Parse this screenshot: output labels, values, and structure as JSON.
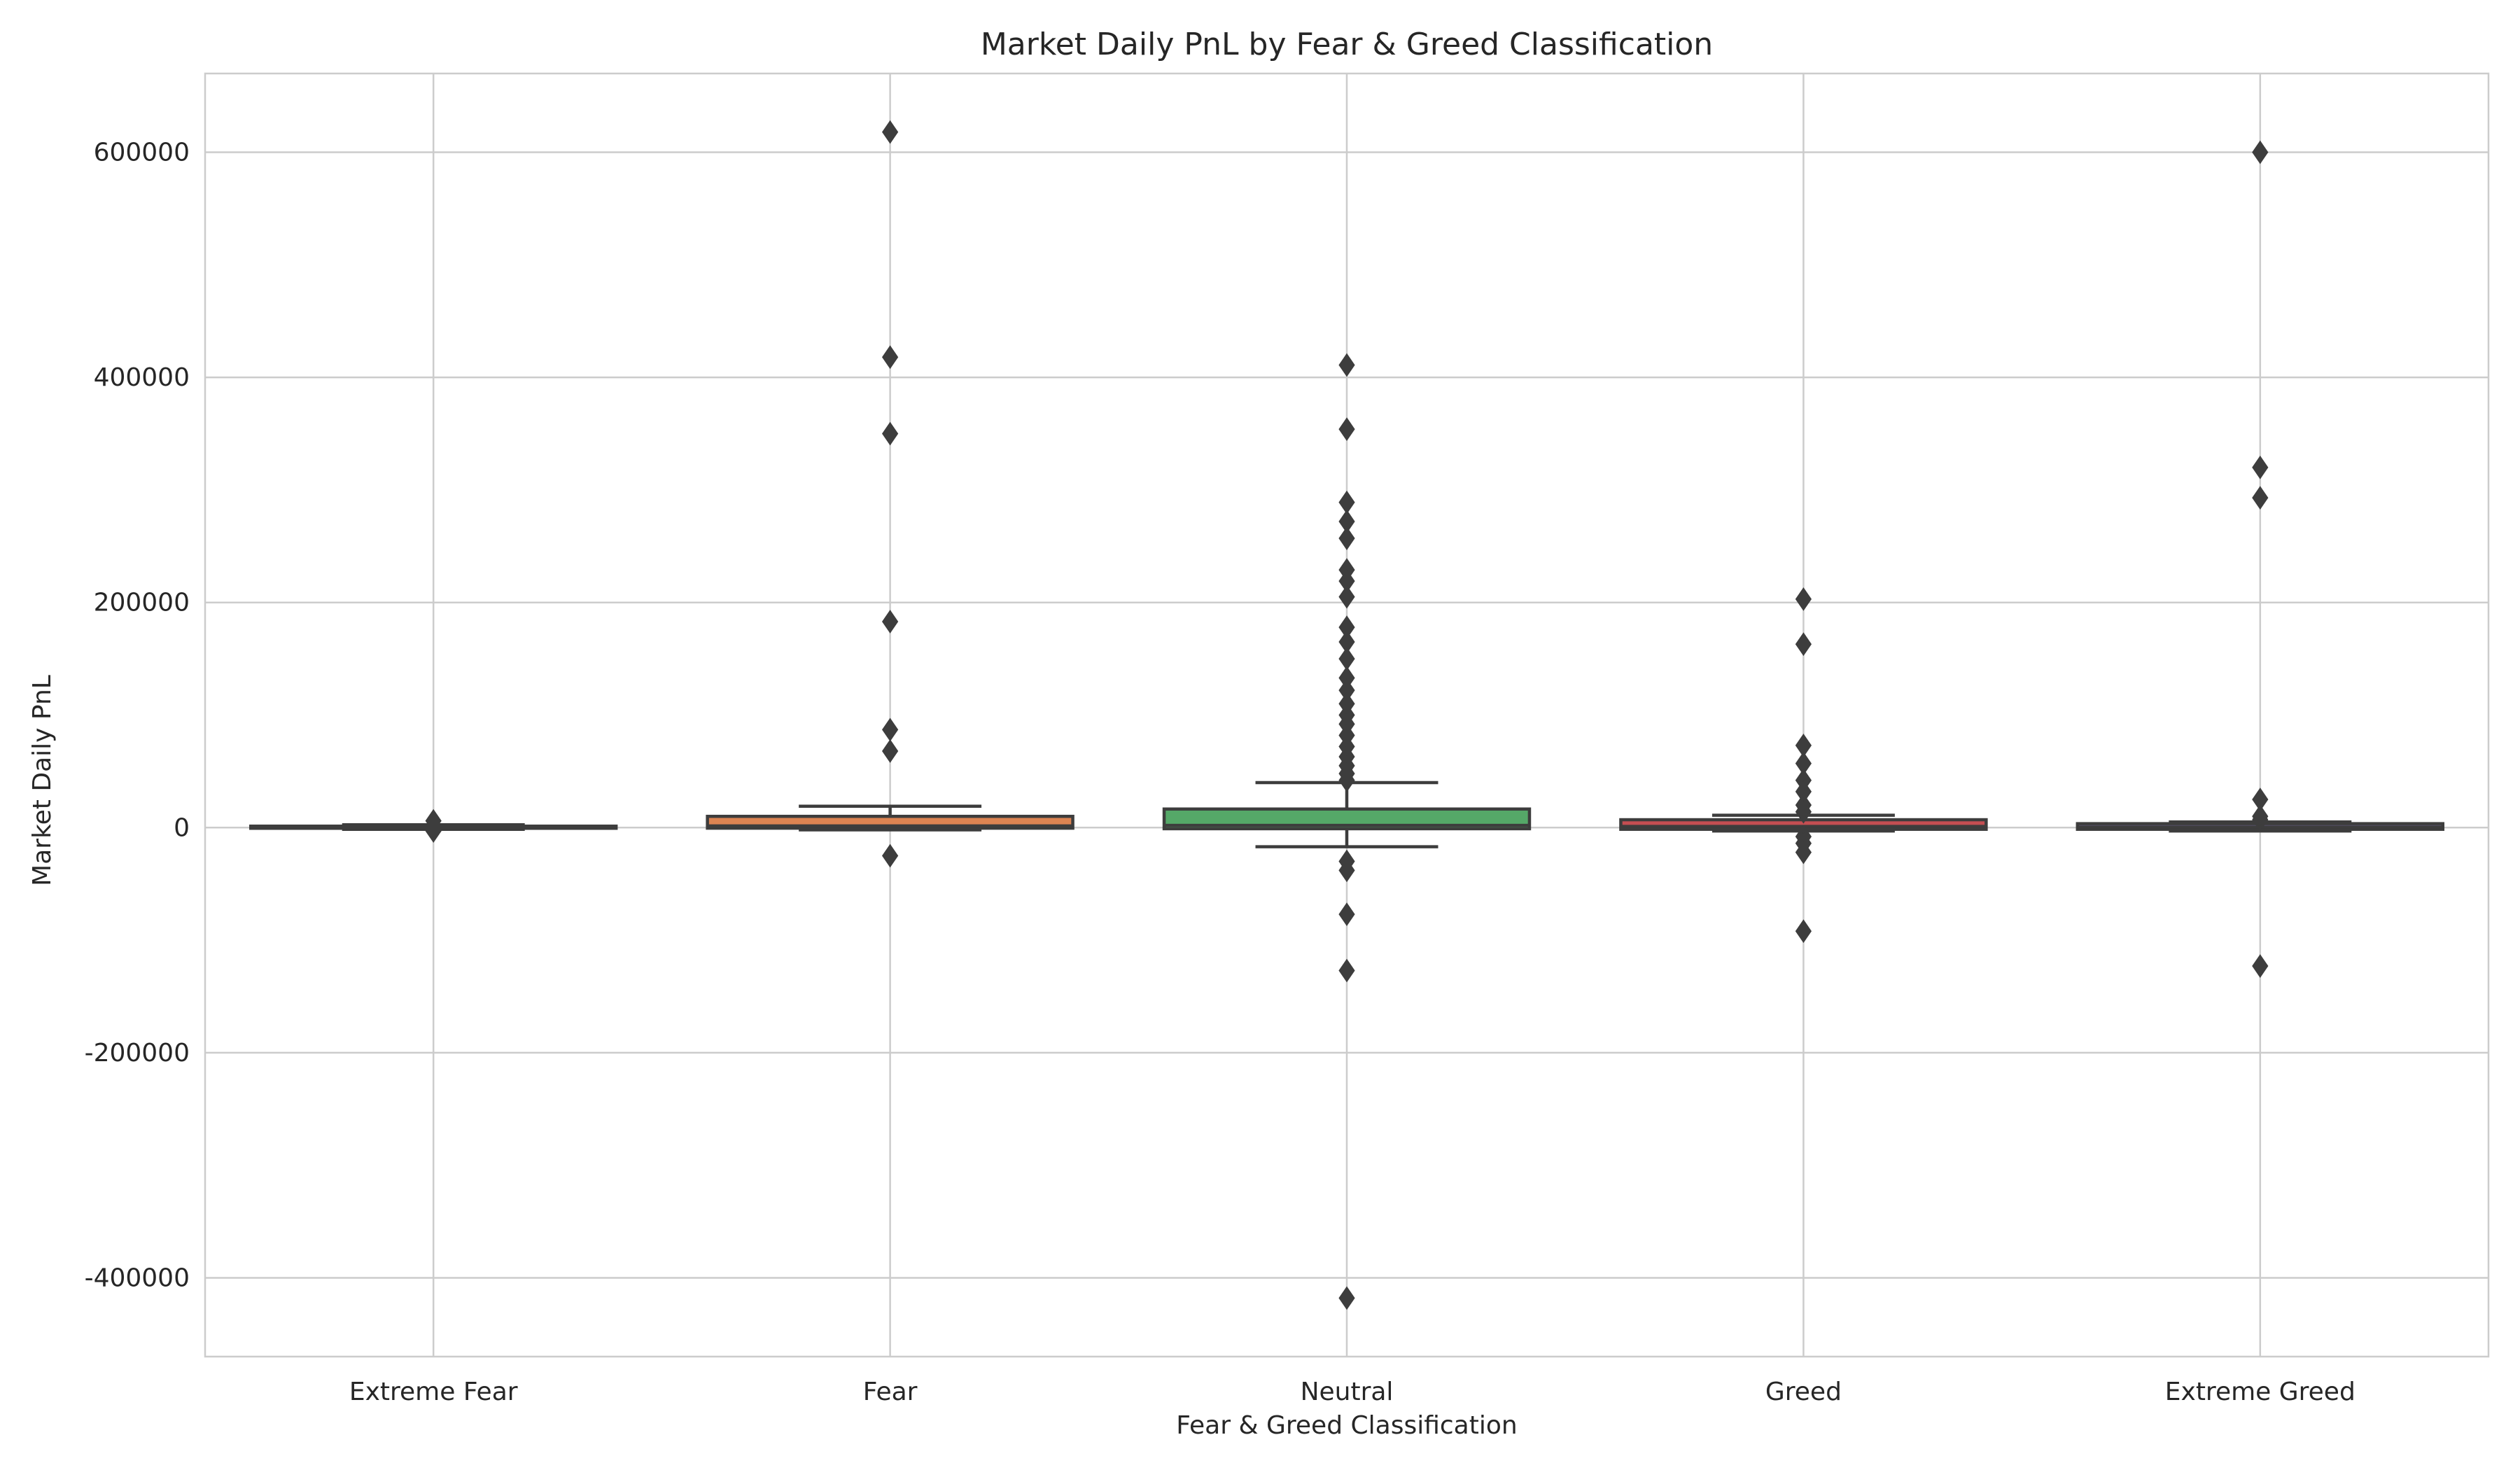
{
  "chart_data": {
    "type": "box",
    "title": "Market Daily PnL by Fear & Greed Classification",
    "xlabel": "Fear & Greed Classification",
    "ylabel": "Market Daily PnL",
    "ylim": [
      -470000,
      670000
    ],
    "yticks": [
      -400000,
      -200000,
      0,
      200000,
      400000,
      600000
    ],
    "grid": true,
    "legend": "none",
    "categories": [
      "Extreme Fear",
      "Fear",
      "Neutral",
      "Greed",
      "Extreme Greed"
    ],
    "colors": [
      "#4c72b0",
      "#dd8452",
      "#55a868",
      "#c44e52",
      "#8172b3"
    ],
    "boxes": [
      {
        "category": "Extreme Fear",
        "q1": -600,
        "median": 0,
        "q3": 1300,
        "whisker_low": -1500,
        "whisker_high": 2500,
        "outliers": [
          6000,
          -3000
        ]
      },
      {
        "category": "Fear",
        "q1": -500,
        "median": 1500,
        "q3": 10000,
        "whisker_low": -2000,
        "whisker_high": 19000,
        "outliers": [
          618000,
          418000,
          350000,
          183000,
          87000,
          68000,
          -25000
        ]
      },
      {
        "category": "Neutral",
        "q1": -1000,
        "median": 2000,
        "q3": 16500,
        "whisker_low": -17000,
        "whisker_high": 40000,
        "outliers": [
          411000,
          354000,
          289000,
          272000,
          257000,
          229000,
          219000,
          205000,
          178000,
          165000,
          150000,
          133000,
          122000,
          110000,
          100000,
          92000,
          82000,
          72000,
          63000,
          55000,
          48000,
          42000,
          -30000,
          -38000,
          -77000,
          -127000,
          -418000
        ]
      },
      {
        "category": "Greed",
        "q1": -1500,
        "median": 1000,
        "q3": 7000,
        "whisker_low": -3000,
        "whisker_high": 11000,
        "outliers": [
          203000,
          163000,
          73000,
          57000,
          42000,
          32000,
          20000,
          14000,
          -8000,
          -14000,
          -22000,
          -92000
        ]
      },
      {
        "category": "Extreme Greed",
        "q1": -1500,
        "median": 500,
        "q3": 3500,
        "whisker_low": -3000,
        "whisker_high": 5000,
        "outliers": [
          600000,
          320000,
          293000,
          25000,
          10000,
          7000,
          -123000
        ]
      }
    ]
  }
}
